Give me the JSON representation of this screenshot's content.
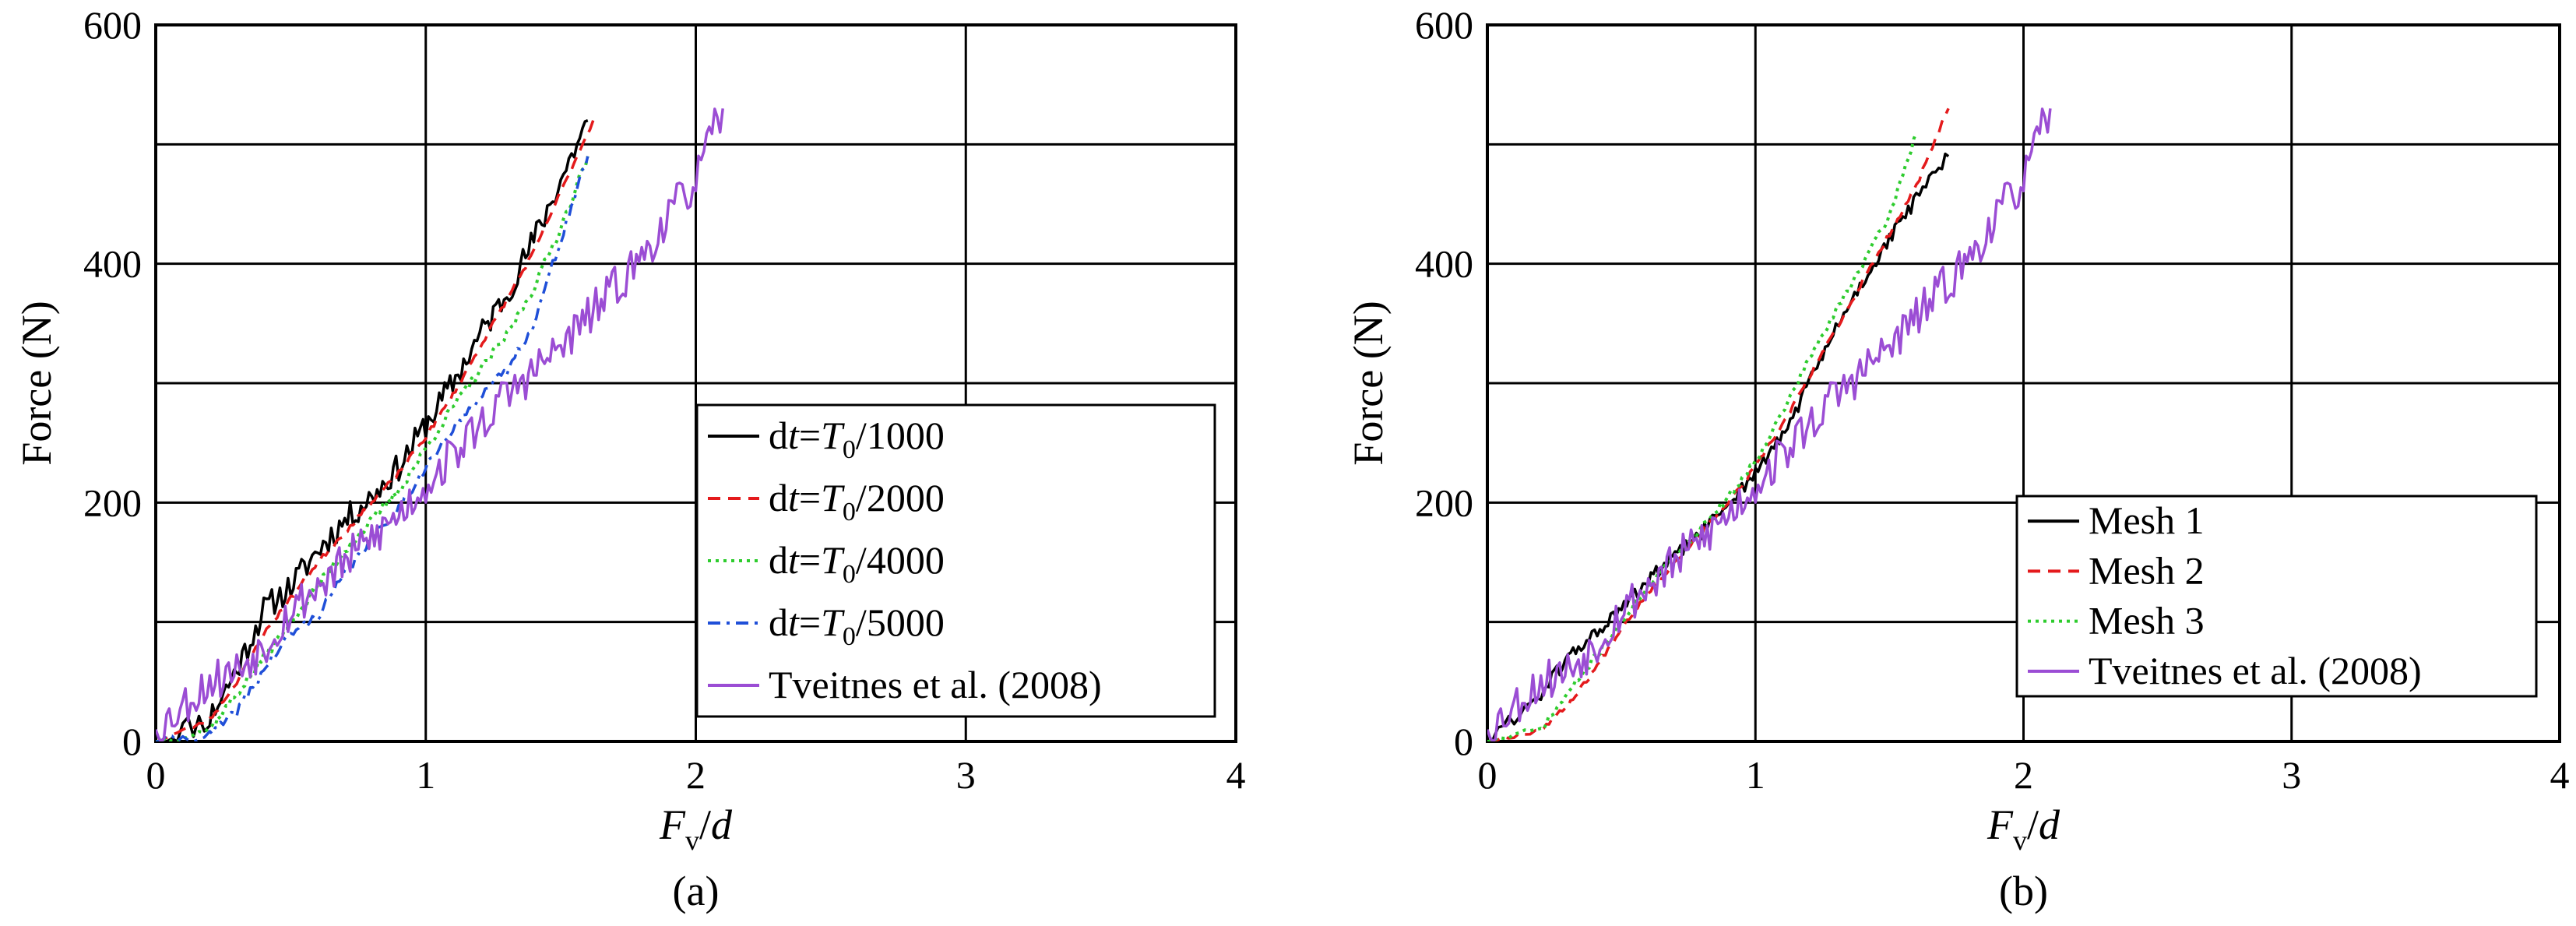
{
  "chart_data": [
    {
      "type": "line",
      "caption": "(a)",
      "xlabel": {
        "main": "F",
        "sub": "v",
        "rest": "/d"
      },
      "ylabel": "Force (N)",
      "xlim": [
        0,
        4
      ],
      "ylim": [
        0,
        600
      ],
      "xticks": [
        "0",
        "1",
        "2",
        "3",
        "4"
      ],
      "yticks": [
        "0",
        "200",
        "400",
        "600"
      ],
      "grid": true,
      "legend_position": "lower-right",
      "series": [
        {
          "legend": {
            "pre": "d",
            "ital": "t",
            "eq": "=",
            "T": "T",
            "sub": "0",
            "post": "/1000"
          },
          "color": "#000000",
          "style": "solid",
          "noise": 12,
          "seed": 11,
          "x": [
            0,
            0.2,
            0.3,
            0.4,
            0.5,
            0.6,
            0.7,
            0.8,
            0.9,
            1.0,
            1.1,
            1.2,
            1.3,
            1.4,
            1.5,
            1.6
          ],
          "y": [
            0,
            20,
            60,
            110,
            130,
            160,
            185,
            205,
            230,
            265,
            300,
            340,
            375,
            420,
            470,
            520
          ]
        },
        {
          "legend": {
            "pre": "d",
            "ital": "t",
            "eq": "=",
            "T": "T",
            "sub": "0",
            "post": "/2000"
          },
          "color": "#e41a1c",
          "style": "dashed",
          "noise": 2,
          "seed": 23,
          "x": [
            0,
            0.2,
            0.3,
            0.4,
            0.5,
            0.6,
            0.7,
            0.8,
            0.9,
            1.0,
            1.1,
            1.2,
            1.3,
            1.4,
            1.5,
            1.62
          ],
          "y": [
            0,
            18,
            50,
            90,
            120,
            150,
            175,
            200,
            225,
            255,
            290,
            330,
            370,
            410,
            460,
            520
          ]
        },
        {
          "legend": {
            "pre": "d",
            "ital": "t",
            "eq": "=",
            "T": "T",
            "sub": "0",
            "post": "/4000"
          },
          "color": "#2ecc2e",
          "style": "dotted",
          "noise": 4,
          "seed": 37,
          "x": [
            0,
            0.2,
            0.3,
            0.4,
            0.5,
            0.6,
            0.7,
            0.8,
            0.9,
            1.0,
            1.1,
            1.2,
            1.3,
            1.4,
            1.5,
            1.6
          ],
          "y": [
            0,
            10,
            40,
            70,
            100,
            130,
            160,
            185,
            210,
            245,
            280,
            310,
            340,
            380,
            430,
            490
          ]
        },
        {
          "legend": {
            "pre": "d",
            "ital": "t",
            "eq": "=",
            "T": "T",
            "sub": "0",
            "post": "/5000"
          },
          "color": "#1f4fd8",
          "style": "dashdot",
          "noise": 4,
          "seed": 41,
          "x": [
            0,
            0.2,
            0.3,
            0.4,
            0.5,
            0.6,
            0.7,
            0.8,
            0.9,
            1.0,
            1.1,
            1.2,
            1.3,
            1.4,
            1.5,
            1.6
          ],
          "y": [
            0,
            5,
            25,
            60,
            90,
            105,
            140,
            170,
            195,
            230,
            260,
            290,
            310,
            350,
            420,
            490
          ]
        },
        {
          "legend": {
            "pre": "Tveitnes et al. (2008)"
          },
          "color": "#9b4dd4",
          "style": "solid",
          "noise": 18,
          "seed": 53,
          "x": [
            0,
            0.1,
            0.2,
            0.3,
            0.4,
            0.5,
            0.6,
            0.7,
            0.8,
            0.9,
            1.0,
            1.1,
            1.2,
            1.3,
            1.4,
            1.5,
            1.6,
            1.7,
            1.8,
            1.9,
            2.0,
            2.1
          ],
          "y": [
            10,
            30,
            50,
            60,
            80,
            110,
            130,
            150,
            170,
            190,
            215,
            240,
            265,
            290,
            310,
            330,
            355,
            380,
            405,
            440,
            470,
            530
          ]
        }
      ]
    },
    {
      "type": "line",
      "caption": "(b)",
      "xlabel": {
        "main": "F",
        "sub": "v",
        "rest": "/d"
      },
      "ylabel": "Force (N)",
      "xlim": [
        0,
        4
      ],
      "ylim": [
        0,
        600
      ],
      "xticks": [
        "0",
        "1",
        "2",
        "3",
        "4"
      ],
      "yticks": [
        "0",
        "200",
        "400",
        "600"
      ],
      "grid": true,
      "legend_position": "lower-right",
      "series": [
        {
          "legend": {
            "pre": "Mesh 1"
          },
          "color": "#000000",
          "style": "solid",
          "noise": 6,
          "seed": 61,
          "x": [
            0,
            0.2,
            0.3,
            0.4,
            0.5,
            0.6,
            0.7,
            0.8,
            0.9,
            1.0,
            1.1,
            1.2,
            1.3,
            1.4,
            1.5,
            1.6,
            1.72
          ],
          "y": [
            0,
            40,
            70,
            90,
            110,
            135,
            155,
            175,
            200,
            225,
            255,
            300,
            345,
            385,
            420,
            455,
            490
          ]
        },
        {
          "legend": {
            "pre": "Mesh 2"
          },
          "color": "#e41a1c",
          "style": "dashed",
          "noise": 2,
          "seed": 67,
          "x": [
            0,
            0.2,
            0.3,
            0.4,
            0.5,
            0.6,
            0.7,
            0.8,
            0.9,
            1.0,
            1.1,
            1.2,
            1.3,
            1.4,
            1.5,
            1.6,
            1.72
          ],
          "y": [
            0,
            10,
            30,
            60,
            95,
            125,
            150,
            175,
            200,
            230,
            265,
            305,
            345,
            385,
            425,
            465,
            530
          ]
        },
        {
          "legend": {
            "pre": "Mesh 3"
          },
          "color": "#2ecc2e",
          "style": "dotted",
          "noise": 3,
          "seed": 71,
          "x": [
            0,
            0.2,
            0.3,
            0.4,
            0.5,
            0.6,
            0.7,
            0.8,
            0.9,
            1.0,
            1.1,
            1.2,
            1.3,
            1.4,
            1.5,
            1.6
          ],
          "y": [
            0,
            10,
            40,
            70,
            100,
            130,
            155,
            180,
            205,
            235,
            275,
            320,
            360,
            400,
            440,
            510
          ]
        },
        {
          "legend": {
            "pre": "Tveitnes et al. (2008)"
          },
          "color": "#9b4dd4",
          "style": "solid",
          "noise": 18,
          "seed": 53,
          "x": [
            0,
            0.1,
            0.2,
            0.3,
            0.4,
            0.5,
            0.6,
            0.7,
            0.8,
            0.9,
            1.0,
            1.1,
            1.2,
            1.3,
            1.4,
            1.5,
            1.6,
            1.7,
            1.8,
            1.9,
            2.0,
            2.1
          ],
          "y": [
            10,
            30,
            50,
            60,
            80,
            110,
            130,
            150,
            170,
            190,
            215,
            240,
            265,
            290,
            310,
            330,
            355,
            380,
            405,
            440,
            470,
            530
          ]
        }
      ]
    }
  ]
}
